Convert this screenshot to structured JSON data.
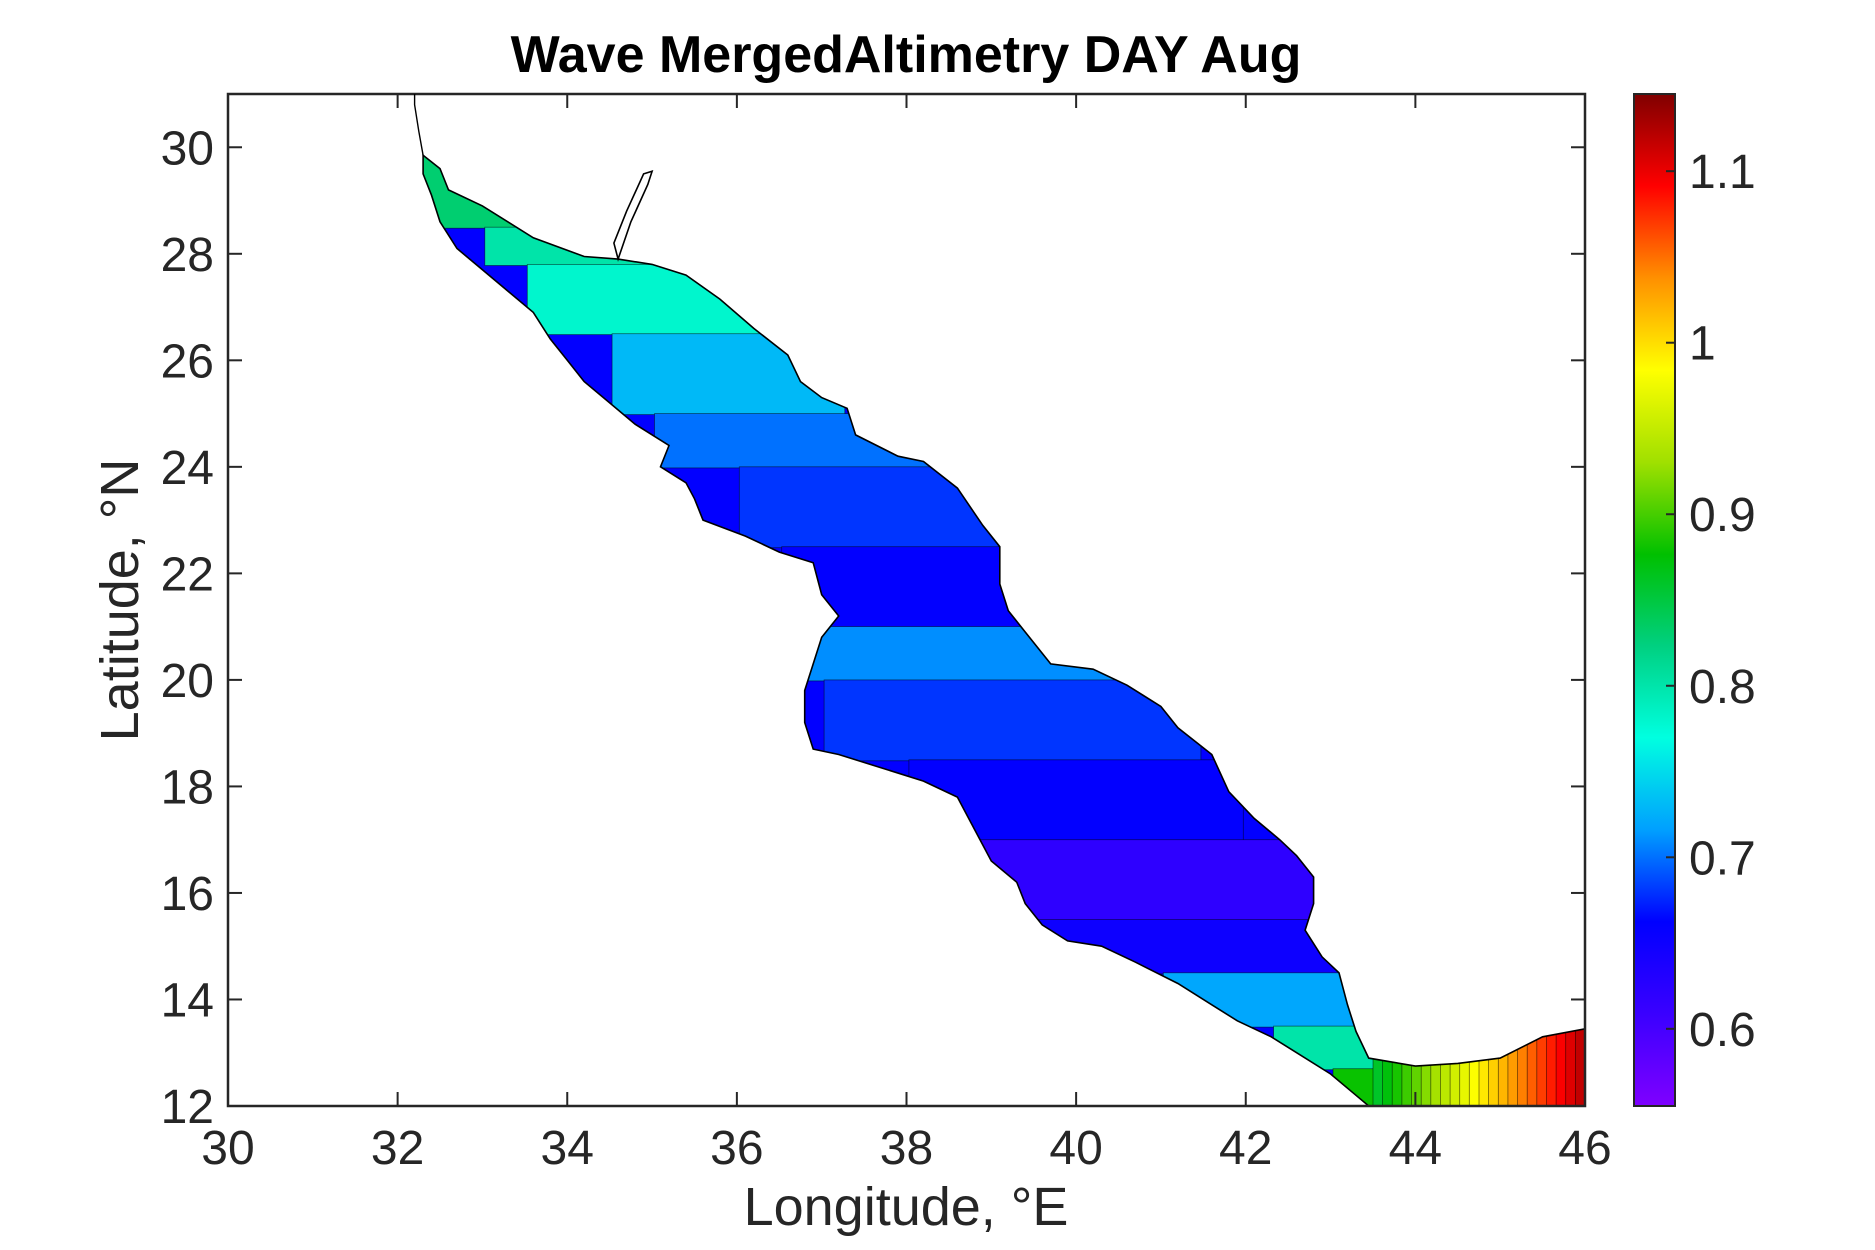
{
  "chart_data": {
    "type": "heatmap",
    "title": "Wave MergedAltimetry DAY Aug",
    "xlabel": "Longitude, °E",
    "ylabel": "Latitude, °N",
    "xlim": [
      30,
      46
    ],
    "ylim": [
      12,
      31
    ],
    "xticks": [
      30,
      32,
      34,
      36,
      38,
      40,
      42,
      44,
      46
    ],
    "yticks": [
      12,
      14,
      16,
      18,
      20,
      22,
      24,
      26,
      28,
      30
    ],
    "colorbar": {
      "colormap": "hsv-like (purple-blue-cyan-green-yellow-red)",
      "range": [
        0.555,
        1.145
      ],
      "ticks": [
        0.6,
        0.7,
        0.8,
        0.9,
        1.0,
        1.1
      ],
      "tick_labels": [
        "0.6",
        "0.7",
        "0.8",
        "0.9",
        "1",
        "1.1"
      ],
      "colors": [
        "#7f00ff",
        "#3a00ff",
        "#0000ff",
        "#00a0ff",
        "#00ffe0",
        "#00d080",
        "#00c000",
        "#a0e000",
        "#ffff00",
        "#ff9000",
        "#ff0000",
        "#800000"
      ]
    },
    "regions": [
      {
        "lon_range": [
          32.3,
          33.5
        ],
        "lat_range": [
          28.5,
          29.9
        ],
        "value": 0.83
      },
      {
        "lon_range": [
          33.5,
          34.7
        ],
        "lat_range": [
          27.8,
          28.5
        ],
        "value": 0.8
      },
      {
        "lon_range": [
          34.0,
          36.0
        ],
        "lat_range": [
          26.5,
          27.8
        ],
        "value": 0.78
      },
      {
        "lon_range": [
          35.0,
          36.8
        ],
        "lat_range": [
          25.0,
          26.5
        ],
        "value": 0.73
      },
      {
        "lon_range": [
          35.5,
          38.0
        ],
        "lat_range": [
          24.0,
          25.0
        ],
        "value": 0.7
      },
      {
        "lon_range": [
          36.5,
          39.0
        ],
        "lat_range": [
          22.5,
          24.0
        ],
        "value": 0.68
      },
      {
        "lon_range": [
          37.0,
          39.3
        ],
        "lat_range": [
          21.0,
          22.5
        ],
        "value": 0.66
      },
      {
        "lon_range": [
          37.2,
          40.0
        ],
        "lat_range": [
          20.0,
          21.0
        ],
        "value": 0.71
      },
      {
        "lon_range": [
          37.5,
          41.0
        ],
        "lat_range": [
          18.5,
          20.0
        ],
        "value": 0.68
      },
      {
        "lon_range": [
          38.5,
          41.5
        ],
        "lat_range": [
          17.0,
          18.5
        ],
        "value": 0.66
      },
      {
        "lon_range": [
          39.0,
          42.8
        ],
        "lat_range": [
          15.5,
          17.0
        ],
        "value": 0.62
      },
      {
        "lon_range": [
          40.0,
          42.8
        ],
        "lat_range": [
          14.5,
          15.5
        ],
        "value": 0.65
      },
      {
        "lon_range": [
          41.5,
          43.3
        ],
        "lat_range": [
          13.5,
          14.5
        ],
        "value": 0.72
      },
      {
        "lon_range": [
          42.8,
          43.5
        ],
        "lat_range": [
          12.7,
          13.5
        ],
        "value": 0.8
      },
      {
        "lon_range": [
          43.5,
          44.5
        ],
        "lat_range": [
          12.0,
          12.7
        ],
        "value": 0.88
      },
      {
        "lon_range": [
          44.5,
          45.2
        ],
        "lat_range": [
          12.0,
          12.8
        ],
        "value": 0.97
      },
      {
        "lon_range": [
          45.2,
          46.0
        ],
        "lat_range": [
          12.0,
          13.4
        ],
        "value": 1.1
      }
    ]
  }
}
